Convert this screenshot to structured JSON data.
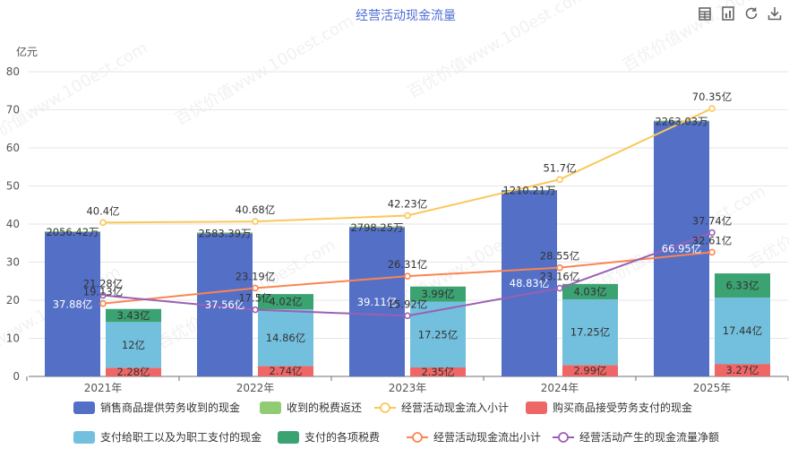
{
  "toolbar": {
    "icons": [
      "data-view-icon",
      "bar-chart-icon",
      "restore-icon",
      "download-icon"
    ]
  },
  "watermark": "百优价值www.100est.com",
  "chart_data": {
    "type": "bar",
    "title": "经营活动现金流量",
    "yunit": "亿元",
    "ylim": [
      0,
      80
    ],
    "yticks": [
      0,
      10,
      20,
      30,
      40,
      50,
      60,
      70,
      80
    ],
    "categories": [
      "2021年",
      "2022年",
      "2023年",
      "2024年",
      "2025年"
    ],
    "bars_left": {
      "name": "销售商品提供劳务收到的现金",
      "color": "#5470c6",
      "values": [
        37.88,
        37.56,
        39.11,
        48.83,
        66.95
      ],
      "labels": [
        "37.88亿",
        "37.56亿",
        "39.11亿",
        "48.83亿",
        "66.95亿"
      ]
    },
    "bars_left_small": {
      "name": "收到的税费返还",
      "color": "#91cc75",
      "values": [
        0.2056,
        0.2583,
        0.2798,
        0.121,
        0.2263
      ],
      "labels": [
        "2056.42万",
        "2583.39万",
        "2798.25万",
        "1210.21万",
        "2263.03万"
      ]
    },
    "stack_right": [
      {
        "name": "购买商品接受劳务支付的现金",
        "color": "#ee6666",
        "values": [
          2.28,
          2.74,
          2.35,
          2.99,
          3.27
        ],
        "labels": [
          "2.28亿",
          "2.74亿",
          "2.35亿",
          "2.99亿",
          "3.27亿"
        ]
      },
      {
        "name": "支付给职工以及为职工支付的现金",
        "color": "#73c0de",
        "values": [
          12,
          14.86,
          17.25,
          17.25,
          17.44
        ],
        "labels": [
          "12亿",
          "14.86亿",
          "17.25亿",
          "17.25亿",
          "17.44亿"
        ]
      },
      {
        "name": "支付的各项税费",
        "color": "#3ba272",
        "values": [
          3.43,
          4.02,
          3.99,
          4.03,
          6.33
        ],
        "labels": [
          "3.43亿",
          "4.02亿",
          "3.99亿",
          "4.03亿",
          "6.33亿"
        ]
      }
    ],
    "lines": [
      {
        "name": "经营活动现金流入小计",
        "color": "#fac858",
        "values": [
          40.4,
          40.68,
          42.23,
          51.7,
          70.35
        ],
        "labels": [
          "40.4亿",
          "40.68亿",
          "42.23亿",
          "51.7亿",
          "70.35亿"
        ]
      },
      {
        "name": "经营活动现金流出小计",
        "color": "#fc8452",
        "values": [
          19.13,
          23.19,
          26.31,
          28.55,
          32.61
        ],
        "labels": [
          "19.13亿",
          "23.19亿",
          "26.31亿",
          "28.55亿",
          "32.61亿"
        ]
      },
      {
        "name": "经营活动产生的现金流量净额",
        "color": "#9a60b4",
        "values": [
          21.28,
          17.5,
          15.92,
          23.16,
          37.74
        ],
        "labels": [
          "21.28亿",
          "17.5亿",
          "15.92亿",
          "23.16亿",
          "37.74亿"
        ]
      }
    ],
    "legend": [
      {
        "name": "销售商品提供劳务收到的现金",
        "kind": "bar",
        "color": "#5470c6"
      },
      {
        "name": "收到的税费返还",
        "kind": "bar",
        "color": "#91cc75"
      },
      {
        "name": "经营活动现金流入小计",
        "kind": "line",
        "color": "#fac858"
      },
      {
        "name": "购买商品接受劳务支付的现金",
        "kind": "bar",
        "color": "#ee6666"
      },
      {
        "name": "支付给职工以及为职工支付的现金",
        "kind": "bar",
        "color": "#73c0de"
      },
      {
        "name": "支付的各项税费",
        "kind": "bar",
        "color": "#3ba272"
      },
      {
        "name": "经营活动现金流出小计",
        "kind": "line",
        "color": "#fc8452"
      },
      {
        "name": "经营活动产生的现金流量净额",
        "kind": "line",
        "color": "#9a60b4"
      }
    ],
    "legend_position": "bottom",
    "grid": true
  }
}
